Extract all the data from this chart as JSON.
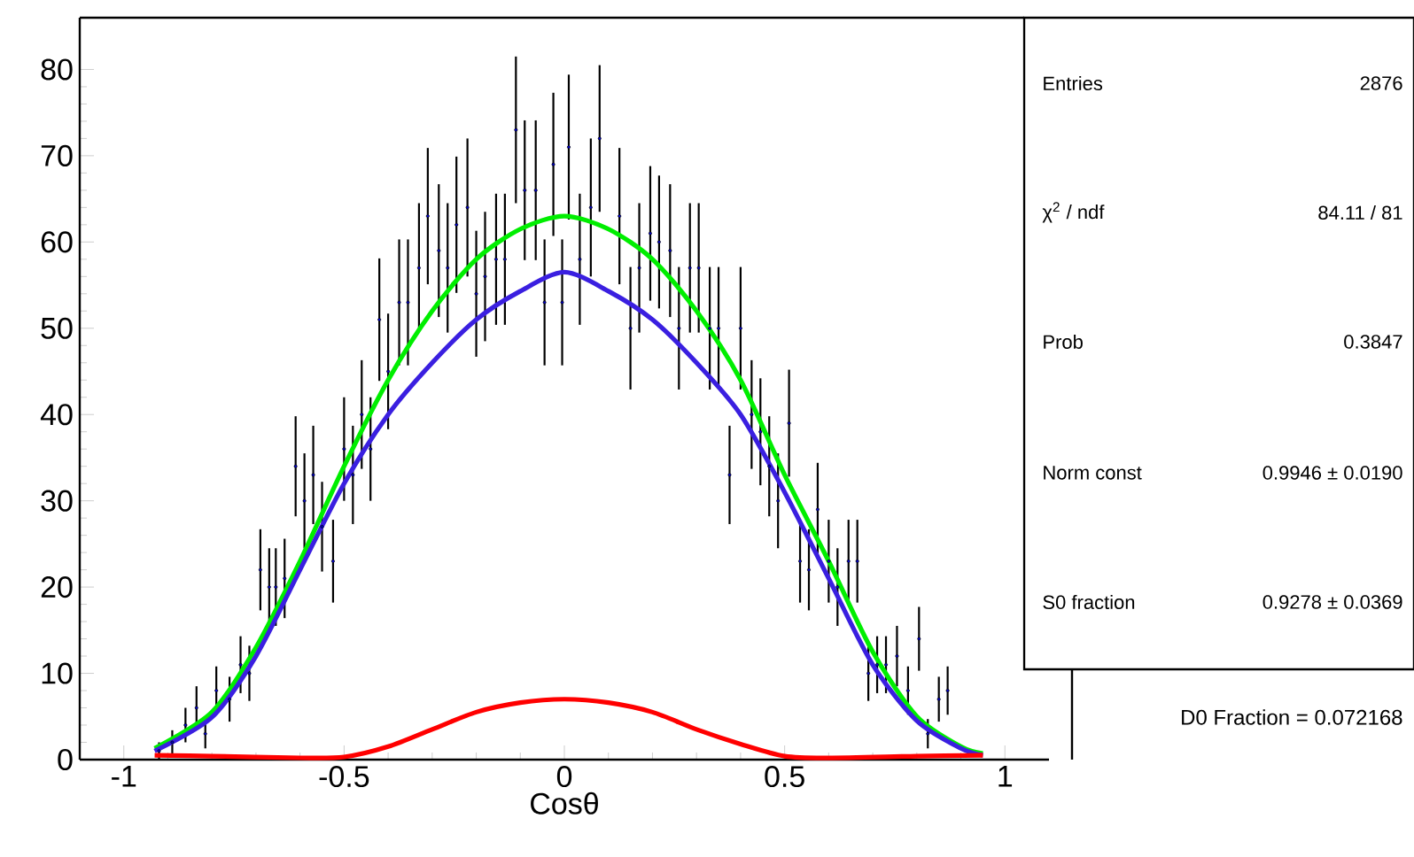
{
  "chart_data": {
    "type": "scatter",
    "xlabel": "Cosθ",
    "xlim": [
      -1.1,
      1.1
    ],
    "ylim": [
      0,
      86
    ],
    "xticks": [
      -1,
      -0.5,
      0,
      0.5,
      1
    ],
    "yticks": [
      0,
      10,
      20,
      30,
      40,
      50,
      60,
      70,
      80
    ],
    "grid": false,
    "annotations": [
      "Entries",
      "2876",
      "χ$^{2}$ / ndf",
      "84.11 / 81",
      "Prob",
      "0.3847",
      "Norm const",
      "0.9946 ± 0.0190",
      "S0 fraction",
      "0.9278 ± 0.0369",
      "D0 Fraction = 0.072168"
    ],
    "series": [
      {
        "type": "scatter",
        "color": "#000000",
        "x": [
          -0.92,
          -0.89,
          -0.86,
          -0.835,
          -0.815,
          -0.79,
          -0.76,
          -0.735,
          -0.715,
          -0.69,
          -0.67,
          -0.655,
          -0.635,
          -0.61,
          -0.59,
          -0.57,
          -0.55,
          -0.525,
          -0.5,
          -0.48,
          -0.46,
          -0.44,
          -0.42,
          -0.4,
          -0.375,
          -0.355,
          -0.33,
          -0.31,
          -0.285,
          -0.265,
          -0.245,
          -0.22,
          -0.2,
          -0.18,
          -0.155,
          -0.135,
          -0.11,
          -0.09,
          -0.065,
          -0.045,
          -0.025,
          -0.005,
          0.01,
          0.035,
          0.06,
          0.08,
          0.125,
          0.15,
          0.17,
          0.195,
          0.215,
          0.24,
          0.26,
          0.285,
          0.305,
          0.33,
          0.35,
          0.375,
          0.4,
          0.425,
          0.445,
          0.465,
          0.485,
          0.51,
          0.535,
          0.555,
          0.575,
          0.6,
          0.62,
          0.645,
          0.665,
          0.69,
          0.71,
          0.73,
          0.755,
          0.78,
          0.805,
          0.825,
          0.85,
          0.87
        ],
        "values": [
          1,
          2,
          4,
          6,
          3,
          8,
          7,
          11,
          10,
          22,
          20,
          20,
          21,
          34,
          30,
          33,
          27,
          23,
          36,
          33,
          40,
          36,
          51,
          45,
          53,
          53,
          57,
          63,
          59,
          57,
          62,
          64,
          54,
          56,
          58,
          58,
          73,
          66,
          66,
          53,
          69,
          53,
          71,
          58,
          64,
          72,
          63,
          50,
          57,
          61,
          60,
          59,
          50,
          57,
          57,
          50,
          50,
          33,
          50,
          40,
          38,
          34,
          30,
          39,
          23,
          22,
          29,
          23,
          20,
          23,
          23,
          10,
          11,
          11,
          12,
          8,
          14,
          3,
          7,
          8
        ],
        "errors": [
          1,
          1.4,
          2,
          2.5,
          1.7,
          2.8,
          2.6,
          3.3,
          3.2,
          4.7,
          4.5,
          4.5,
          4.6,
          5.8,
          5.5,
          5.7,
          5.2,
          4.8,
          6,
          5.7,
          6.3,
          6,
          7.1,
          6.7,
          7.3,
          7.3,
          7.5,
          7.9,
          7.7,
          7.5,
          7.9,
          8,
          7.3,
          7.5,
          7.6,
          7.6,
          8.5,
          8.1,
          8.1,
          7.3,
          8.3,
          7.3,
          8.4,
          7.6,
          8,
          8.5,
          7.9,
          7.1,
          7.5,
          7.8,
          7.7,
          7.7,
          7.1,
          7.5,
          7.5,
          7.1,
          7.1,
          5.7,
          7.1,
          6.3,
          6.2,
          5.8,
          5.5,
          6.2,
          4.8,
          4.7,
          5.4,
          4.8,
          4.5,
          4.8,
          4.8,
          3.2,
          3.3,
          3.3,
          3.5,
          2.8,
          3.7,
          1.7,
          2.6,
          2.8
        ]
      },
      {
        "type": "line",
        "color": "#00ee00",
        "x": [
          -0.93,
          -0.8,
          -0.7,
          -0.6,
          -0.5,
          -0.4,
          -0.3,
          -0.2,
          -0.1,
          0,
          0.1,
          0.2,
          0.3,
          0.4,
          0.5,
          0.6,
          0.7,
          0.8,
          0.9,
          0.95
        ],
        "values": [
          1.3,
          5.5,
          13,
          23,
          34,
          44,
          52,
          58,
          61.5,
          63,
          61.5,
          58,
          52,
          44,
          33,
          23,
          12.5,
          5,
          1.5,
          0.7
        ]
      },
      {
        "type": "line",
        "color": "#3a1fe0",
        "x": [
          -0.93,
          -0.8,
          -0.7,
          -0.6,
          -0.5,
          -0.4,
          -0.3,
          -0.2,
          -0.1,
          0,
          0.1,
          0.2,
          0.3,
          0.4,
          0.5,
          0.6,
          0.7,
          0.8,
          0.9,
          0.95
        ],
        "values": [
          1,
          4.9,
          12,
          22,
          32,
          40,
          46,
          51,
          54.3,
          56.5,
          54.3,
          51,
          46,
          40,
          31,
          21,
          11,
          4.5,
          1.3,
          0.5
        ]
      },
      {
        "type": "line",
        "color": "#ff0000",
        "x": [
          -0.93,
          -0.8,
          -0.6,
          -0.5,
          -0.4,
          -0.3,
          -0.2,
          -0.1,
          0,
          0.1,
          0.2,
          0.3,
          0.4,
          0.5,
          0.6,
          0.8,
          0.95
        ],
        "values": [
          0.5,
          0.4,
          0.2,
          0.3,
          1.5,
          3.5,
          5.5,
          6.6,
          7,
          6.6,
          5.5,
          3.5,
          1.8,
          0.4,
          0.2,
          0.4,
          0.5
        ]
      }
    ]
  }
}
